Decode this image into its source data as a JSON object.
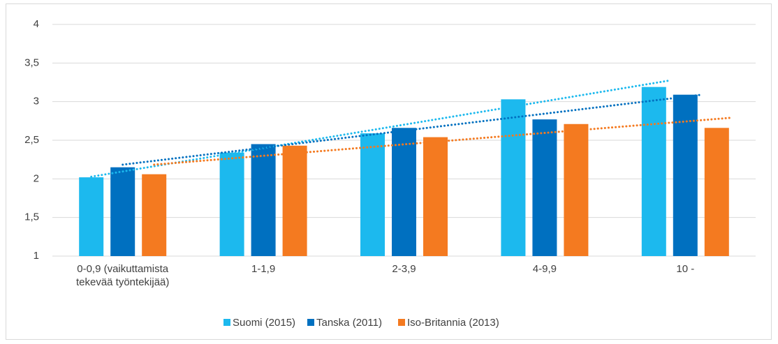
{
  "chart_data": {
    "type": "bar",
    "categories": [
      "0-0,9 (vaikuttamista tekevää työntekijää)",
      "1-1,9",
      "2-3,9",
      "4-9,9",
      "10 -"
    ],
    "series": [
      {
        "name": "Suomi (2015)",
        "color": "#1cb9ee",
        "values": [
          2.02,
          2.34,
          2.59,
          3.03,
          3.19
        ]
      },
      {
        "name": "Tanska (2011)",
        "color": "#0070c0",
        "values": [
          2.15,
          2.45,
          2.66,
          2.77,
          3.09
        ]
      },
      {
        "name": "Iso-Britannia (2013)",
        "color": "#f47a20",
        "values": [
          2.06,
          2.43,
          2.54,
          2.71,
          2.66
        ]
      }
    ],
    "ylim": [
      1,
      4
    ],
    "yticks": [
      1,
      {
        "value": 1.5,
        "label": "1,5"
      },
      2,
      {
        "value": 2.5,
        "label": "2,5"
      },
      3,
      {
        "value": 3.5,
        "label": "3,5"
      },
      4
    ],
    "grid": true,
    "trendline": "linear",
    "legend": "bottom"
  }
}
